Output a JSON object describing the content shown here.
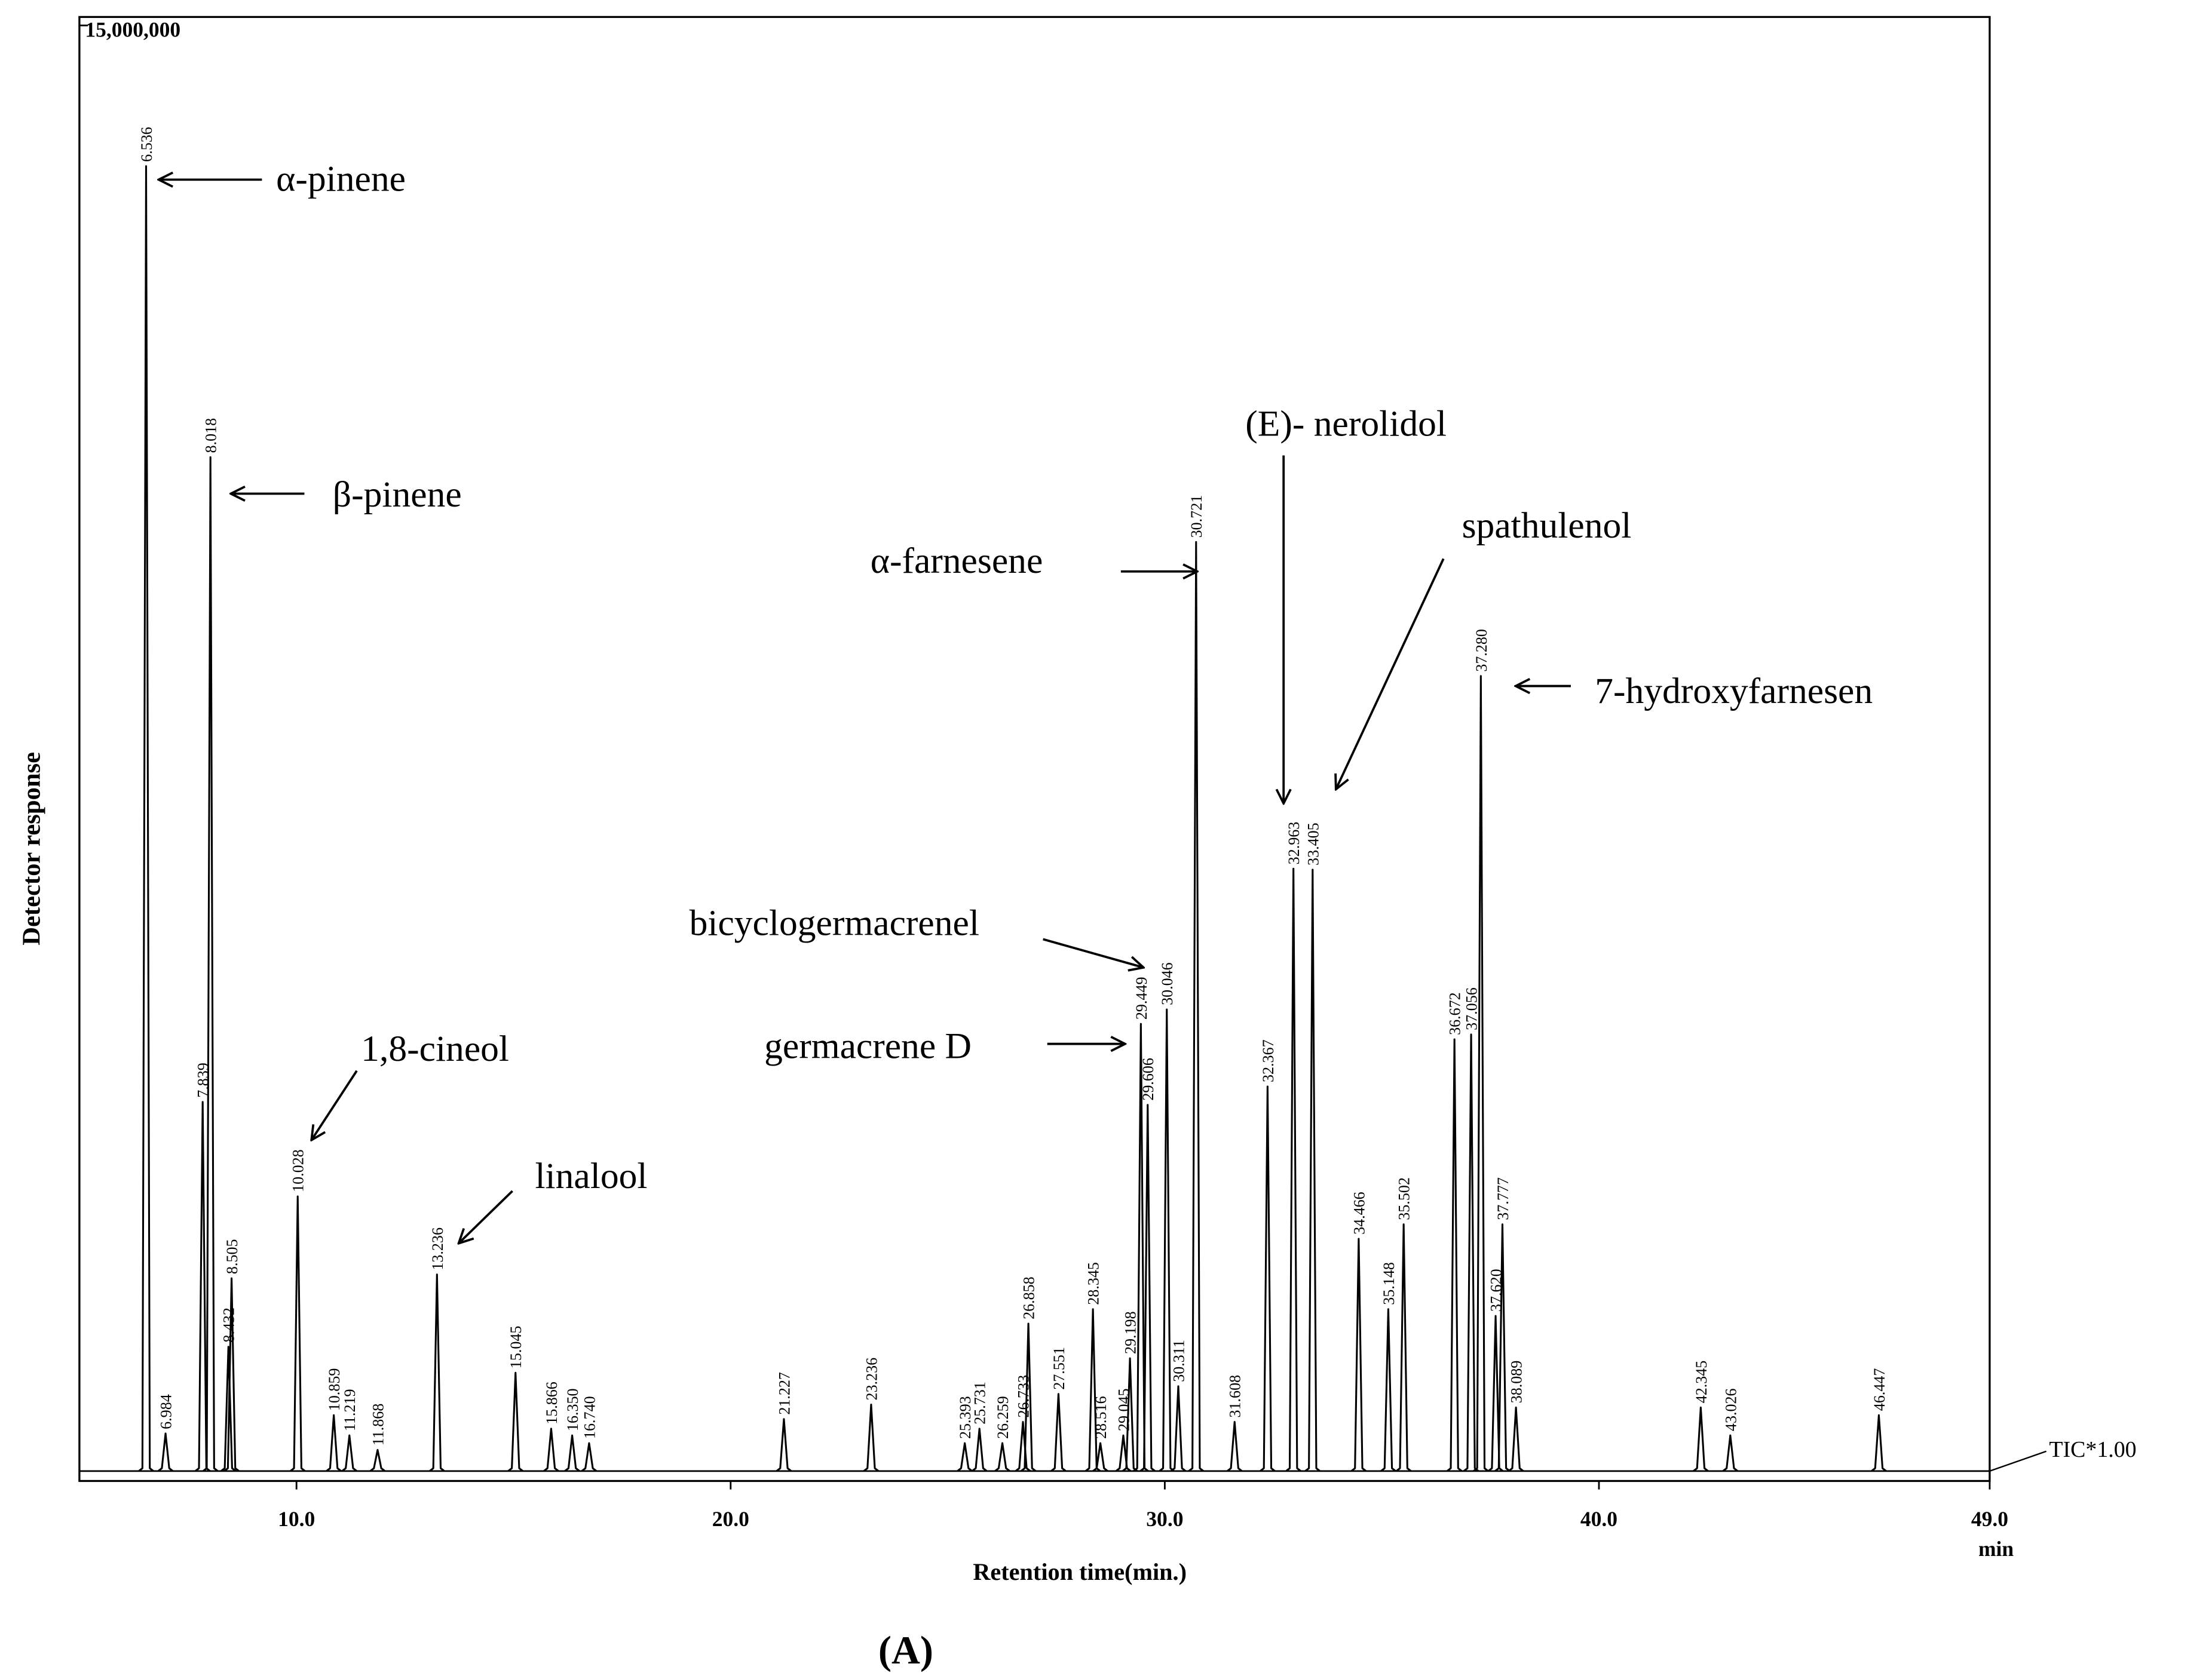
{
  "chart_data": {
    "type": "chromatogram",
    "title": "15,000,000",
    "x_label": "Retention time(min.)",
    "x_unit": "min",
    "y_label": "Detector response",
    "trace_label": "TIC*1.00",
    "caption": "(A)",
    "color": "#000000",
    "xlim": [
      5,
      49
    ],
    "xticks": [
      {
        "value": 10,
        "label": "10.0"
      },
      {
        "value": 20,
        "label": "20.0"
      },
      {
        "value": 30,
        "label": "30.0"
      },
      {
        "value": 40,
        "label": "40.0"
      },
      {
        "value": 49,
        "label": "49.0"
      }
    ],
    "ylim": [
      0,
      15000000
    ],
    "yticks": [
      {
        "value": 15000000,
        "label": "15,000,000"
      }
    ],
    "x": [
      6.536,
      6.984,
      7.839,
      8.018,
      8.432,
      8.505,
      10.028,
      10.859,
      11.219,
      11.868,
      13.236,
      15.045,
      15.866,
      16.35,
      16.74,
      21.227,
      23.236,
      25.393,
      25.731,
      26.259,
      26.733,
      26.858,
      27.551,
      28.345,
      28.516,
      29.045,
      29.198,
      29.449,
      29.606,
      30.046,
      30.311,
      30.721,
      31.608,
      32.367,
      32.963,
      33.405,
      34.466,
      35.148,
      35.502,
      36.672,
      37.056,
      37.28,
      37.62,
      37.777,
      38.089,
      42.345,
      43.026,
      46.447
    ],
    "values": [
      13540000,
      390000,
      3830000,
      10520000,
      1290000,
      2000000,
      2850000,
      580000,
      370000,
      220000,
      2040000,
      1020000,
      440000,
      370000,
      290000,
      540000,
      690000,
      290000,
      440000,
      290000,
      510000,
      1530000,
      800000,
      1680000,
      290000,
      370000,
      1170000,
      4640000,
      3800000,
      4790000,
      880000,
      9640000,
      510000,
      3990000,
      6250000,
      6240000,
      2410000,
      1680000,
      2560000,
      4480000,
      4530000,
      8250000,
      1610000,
      2560000,
      660000,
      660000,
      370000,
      580000
    ],
    "value_labels": [
      "6.536",
      "6.984",
      "7.839",
      "8.018",
      "8.432",
      "8.505",
      "10.028",
      "10.859",
      "11.219",
      "11.868",
      "13.236",
      "15.045",
      "15.866",
      "16.350",
      "16.740",
      "21.227",
      "23.236",
      "25.393",
      "25.731",
      "26.259",
      "26.733",
      "26.858",
      "27.551",
      "28.345",
      "28.516",
      "29.045",
      "29.198",
      "29.449",
      "29.606",
      "30.046",
      "30.311",
      "30.721",
      "31.608",
      "32.367",
      "32.963",
      "33.405",
      "34.466",
      "35.148",
      "35.502",
      "36.672",
      "37.056",
      "37.280",
      "37.620",
      "37.777",
      "38.089",
      "42.345",
      "43.026",
      "46.447"
    ],
    "annotations": [
      "α-pinene",
      "β-pinene",
      "1,8-cineol",
      "linalool",
      "α-farnesene",
      "bicyclogermacrenel",
      "germacrene D",
      "(E)- nerolidol",
      "spathulenol",
      "7-hydroxyfarnesen"
    ]
  }
}
